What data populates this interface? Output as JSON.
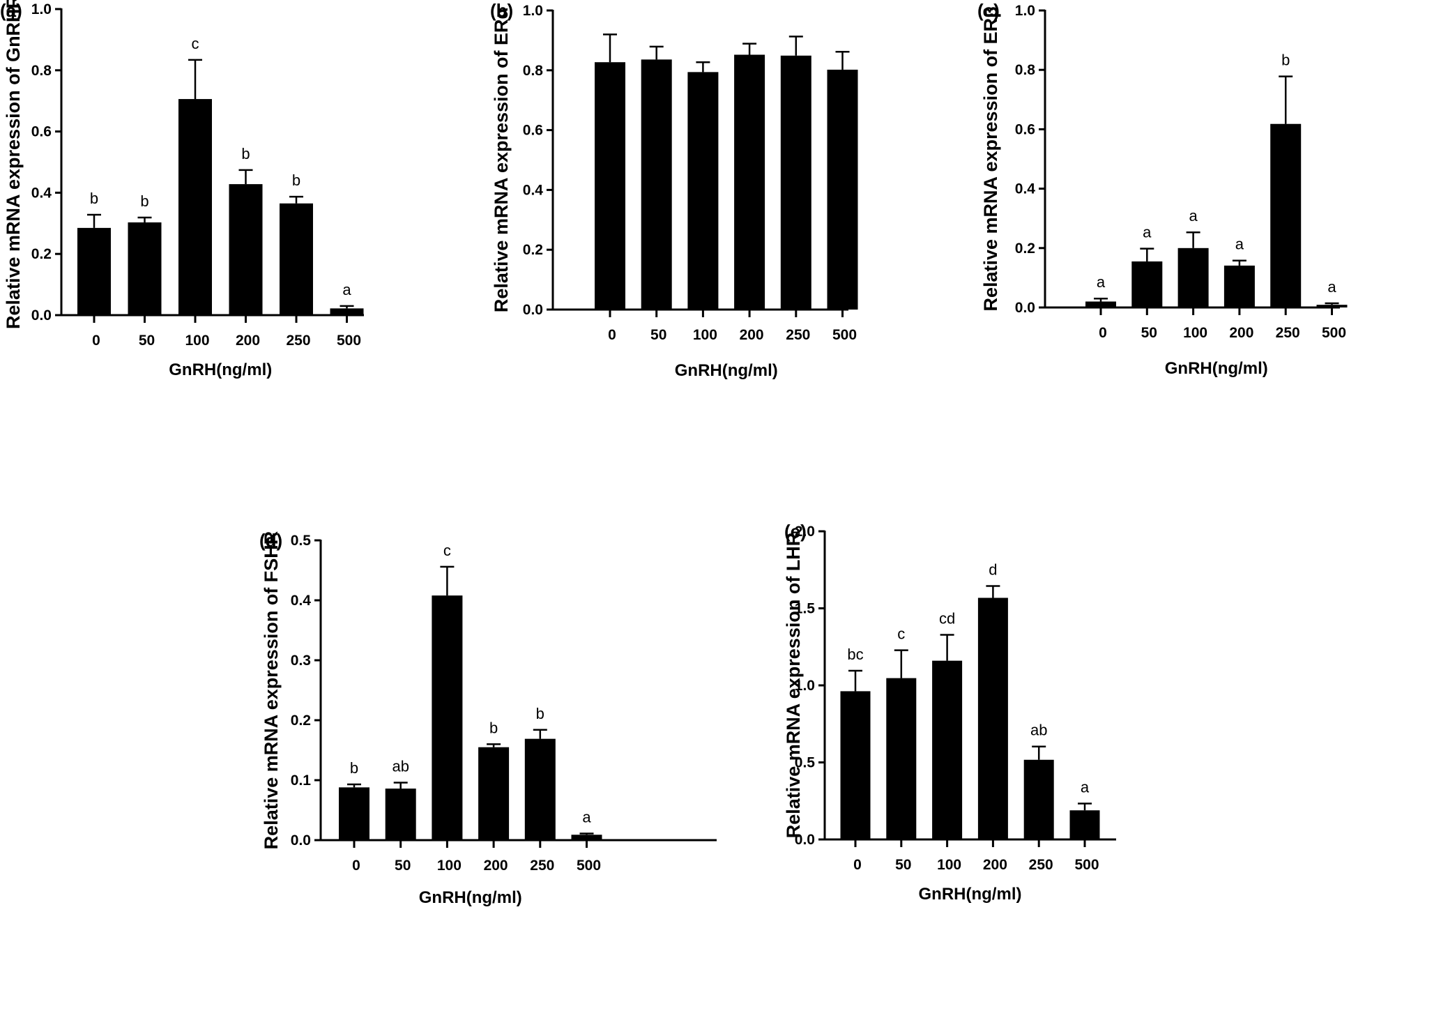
{
  "chart_data": [
    {
      "type": "bar",
      "panel_label": "(a)",
      "title": "",
      "xlabel": "GnRH(ng/ml)",
      "ylabel": "Relative mRNA expression of GnRHR",
      "categories": [
        "0",
        "50",
        "100",
        "200",
        "250",
        "500"
      ],
      "values": [
        0.285,
        0.303,
        0.706,
        0.428,
        0.365,
        0.022
      ],
      "error_upper": [
        0.328,
        0.319,
        0.834,
        0.474,
        0.387,
        0.03
      ],
      "significance": [
        "b",
        "b",
        "c",
        "b",
        "b",
        "a"
      ],
      "ylim": [
        0,
        1.0
      ],
      "yticks": [
        "0.0",
        "0.2",
        "0.4",
        "0.6",
        "0.8",
        "1.0"
      ],
      "grid": false,
      "bar_color": "#000000"
    },
    {
      "type": "bar",
      "panel_label": "(b)",
      "title": "",
      "xlabel": "GnRH(ng/ml)",
      "ylabel": "Relative mRNA expression of ERα",
      "categories": [
        "0",
        "50",
        "100",
        "200",
        "250",
        "500"
      ],
      "values": [
        0.827,
        0.836,
        0.794,
        0.852,
        0.849,
        0.802
      ],
      "error_upper": [
        0.92,
        0.879,
        0.827,
        0.889,
        0.913,
        0.862
      ],
      "significance": [
        "",
        "",
        "",
        "",
        "",
        ""
      ],
      "ylim": [
        0,
        1.0
      ],
      "yticks": [
        "0.0",
        "0.2",
        "0.4",
        "0.6",
        "0.8",
        "1.0"
      ],
      "grid": false,
      "bar_color": "#000000"
    },
    {
      "type": "bar",
      "panel_label": "(c)",
      "title": "",
      "xlabel": "GnRH(ng/ml)",
      "ylabel": "Relative mRNA expression of ERβ",
      "categories": [
        "0",
        "50",
        "100",
        "200",
        "250",
        "500"
      ],
      "values": [
        0.02,
        0.155,
        0.2,
        0.141,
        0.618,
        0.009
      ],
      "error_upper": [
        0.03,
        0.198,
        0.253,
        0.158,
        0.778,
        0.014
      ],
      "significance": [
        "a",
        "a",
        "a",
        "a",
        "b",
        "a"
      ],
      "ylim": [
        0,
        1.0
      ],
      "yticks": [
        "0.0",
        "0.2",
        "0.4",
        "0.6",
        "0.8",
        "1.0"
      ],
      "grid": false,
      "bar_color": "#000000"
    },
    {
      "type": "bar",
      "panel_label": "(d)",
      "title": "",
      "xlabel": "GnRH(ng/ml)",
      "ylabel": "Relative mRNA expression of FSHR",
      "categories": [
        "0",
        "50",
        "100",
        "200",
        "250",
        "500"
      ],
      "values": [
        0.088,
        0.086,
        0.408,
        0.155,
        0.169,
        0.009
      ],
      "error_upper": [
        0.093,
        0.096,
        0.456,
        0.16,
        0.184,
        0.011
      ],
      "significance": [
        "b",
        "ab",
        "c",
        "b",
        "b",
        "a"
      ],
      "ylim": [
        0,
        0.5
      ],
      "yticks": [
        "0.0",
        "0.1",
        "0.2",
        "0.3",
        "0.4",
        "0.5"
      ],
      "grid": false,
      "bar_color": "#000000"
    },
    {
      "type": "bar",
      "panel_label": "(e)",
      "title": "",
      "xlabel": "GnRH(ng/ml)",
      "ylabel": "Relative mRNA expression of LHR",
      "categories": [
        "0",
        "50",
        "100",
        "200",
        "250",
        "500"
      ],
      "values": [
        0.962,
        1.047,
        1.16,
        1.568,
        0.517,
        0.189
      ],
      "error_upper": [
        1.095,
        1.228,
        1.328,
        1.645,
        0.603,
        0.233
      ],
      "significance": [
        "bc",
        "c",
        "cd",
        "d",
        "ab",
        "a"
      ],
      "ylim": [
        0,
        2.0
      ],
      "yticks": [
        "0.0",
        "0.5",
        "1.0",
        "1.5",
        "2.0"
      ],
      "grid": false,
      "bar_color": "#000000"
    }
  ]
}
